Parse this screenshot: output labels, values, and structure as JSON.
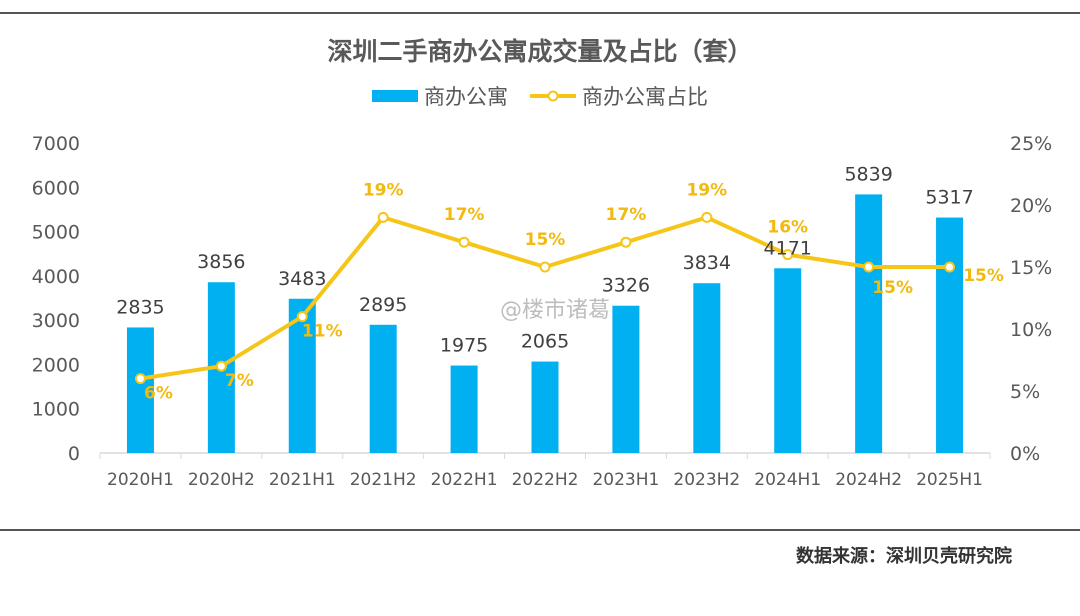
{
  "chart_data": {
    "type": "bar",
    "title": "深圳二手商办公寓成交量及占比（套）",
    "categories": [
      "2020H1",
      "2020H2",
      "2021H1",
      "2021H2",
      "2022H1",
      "2022H2",
      "2023H1",
      "2023H2",
      "2024H1",
      "2024H2",
      "2025H1"
    ],
    "series": [
      {
        "name": "商办公寓",
        "type": "bar",
        "axis": "left",
        "color": "#00b0f0",
        "values": [
          2835,
          3856,
          3483,
          2895,
          1975,
          2065,
          3326,
          3834,
          4171,
          5839,
          5317
        ]
      },
      {
        "name": "商办公寓占比",
        "type": "line",
        "axis": "right",
        "color": "#f5c518",
        "values": [
          6,
          7,
          11,
          19,
          17,
          15,
          17,
          19,
          16,
          15,
          15
        ],
        "labels": [
          "6%",
          "7%",
          "11%",
          "19%",
          "17%",
          "15%",
          "17%",
          "19%",
          "16%",
          "15%",
          "15%"
        ]
      }
    ],
    "y_left": {
      "min": 0,
      "max": 7000,
      "ticks": [
        "0",
        "1000",
        "2000",
        "3000",
        "4000",
        "5000",
        "6000",
        "7000"
      ]
    },
    "y_right": {
      "min": 0,
      "max": 25,
      "ticks": [
        "0%",
        "5%",
        "10%",
        "15%",
        "20%",
        "25%"
      ]
    },
    "grid": false,
    "legend": "top-center"
  },
  "source": "数据来源：深圳贝壳研究院",
  "watermark": "@楼市诸葛"
}
